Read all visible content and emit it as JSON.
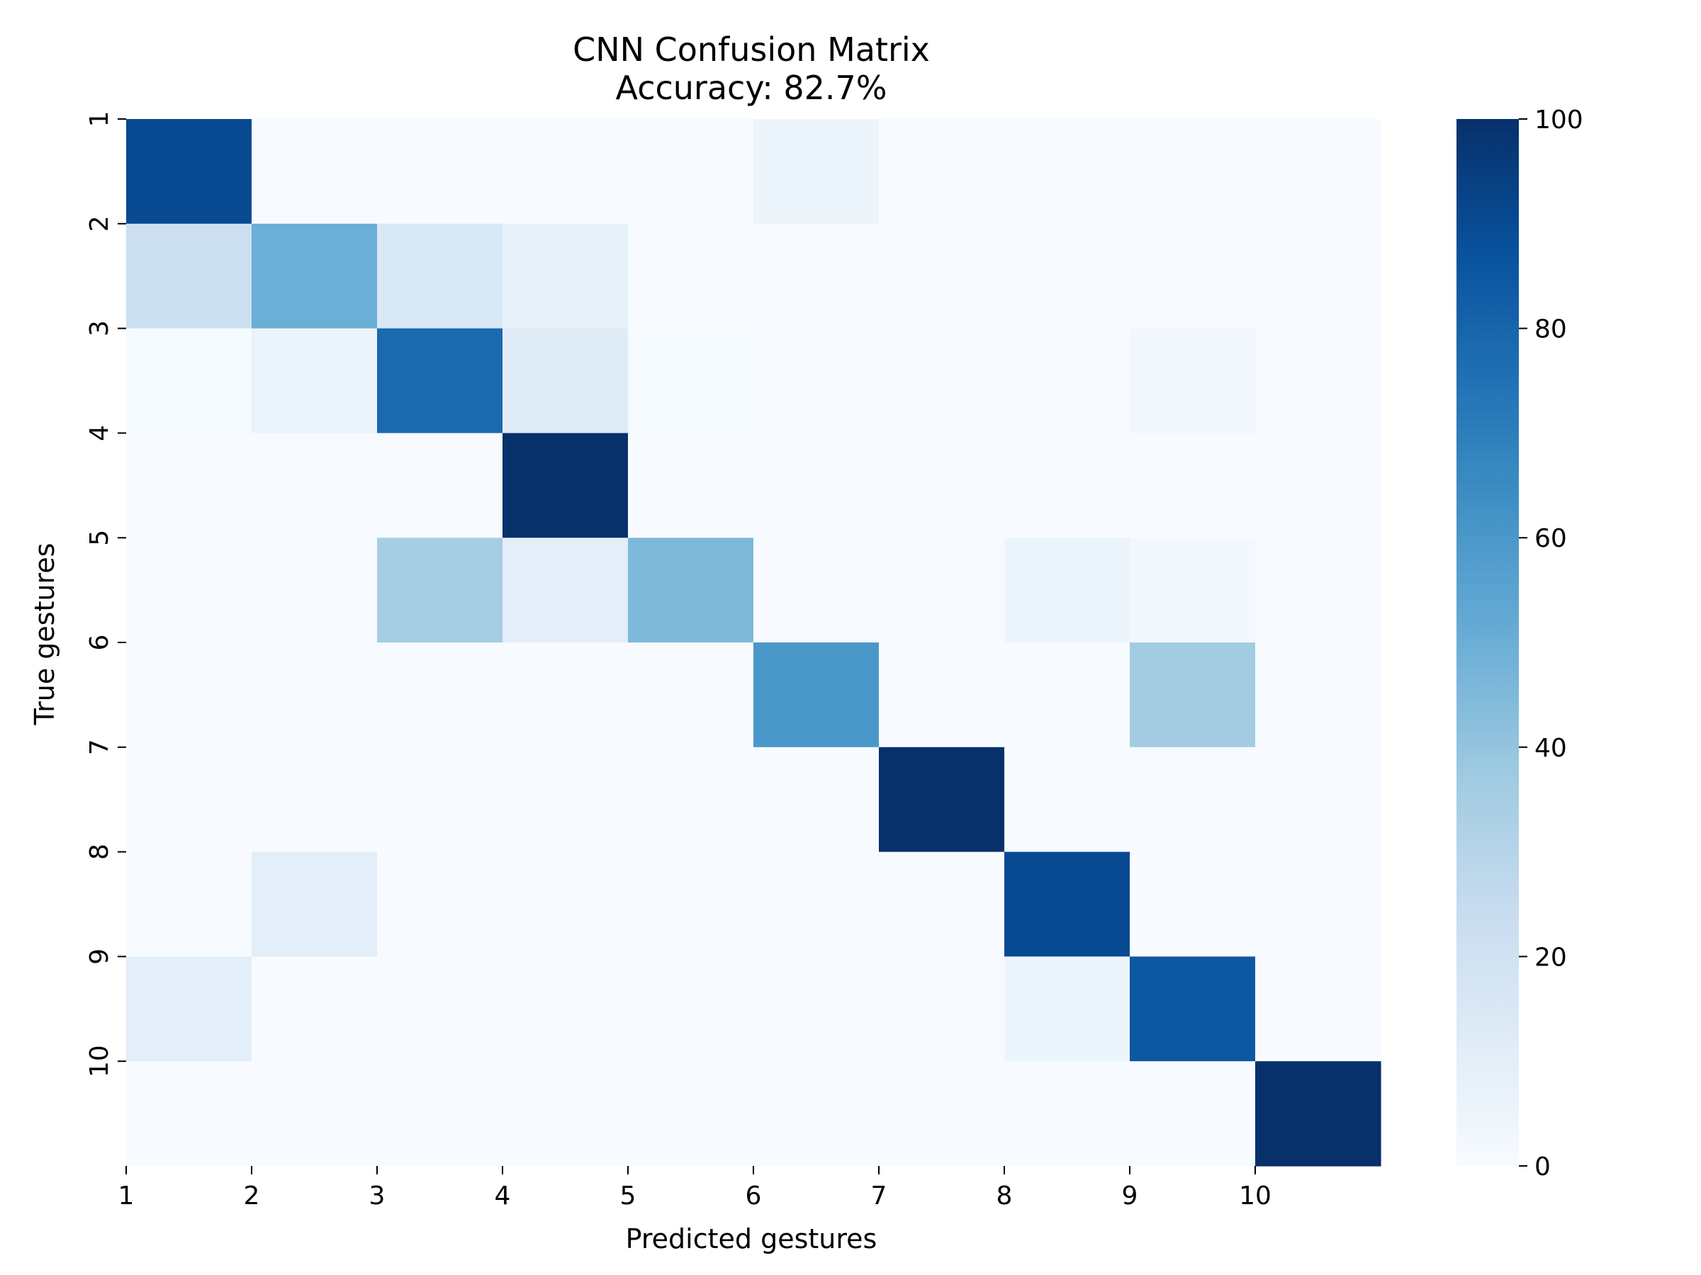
{
  "chart_data": {
    "type": "heatmap",
    "title": "CNN Confusion Matrix",
    "subtitle": "Accuracy: 82.7%",
    "xlabel": "Predicted gestures",
    "ylabel": "True gestures",
    "x_tick_labels": [
      "1",
      "2",
      "3",
      "4",
      "5",
      "6",
      "7",
      "8",
      "9",
      "10"
    ],
    "y_tick_labels": [
      "1",
      "2",
      "3",
      "4",
      "5",
      "6",
      "7",
      "8",
      "9",
      "10"
    ],
    "colormap": "Blues",
    "vmin": 0,
    "vmax": 100,
    "colorbar_ticks": [
      "0",
      "20",
      "40",
      "60",
      "80",
      "100"
    ],
    "grid": false,
    "matrix": [
      [
        90,
        0,
        0,
        0,
        0,
        5,
        0,
        0,
        0,
        0
      ],
      [
        22,
        50,
        15,
        8,
        0,
        0,
        0,
        0,
        0,
        0
      ],
      [
        1,
        6,
        78,
        12,
        1,
        0,
        0,
        0,
        3,
        0
      ],
      [
        0,
        0,
        0,
        100,
        0,
        0,
        0,
        0,
        0,
        0
      ],
      [
        0,
        0,
        35,
        10,
        45,
        0,
        0,
        5,
        2,
        0
      ],
      [
        0,
        0,
        0,
        0,
        0,
        60,
        0,
        0,
        36,
        0
      ],
      [
        0,
        0,
        0,
        0,
        0,
        0,
        100,
        0,
        0,
        0
      ],
      [
        0,
        10,
        0,
        0,
        0,
        0,
        0,
        90,
        0,
        0
      ],
      [
        10,
        0,
        0,
        0,
        0,
        0,
        0,
        5,
        85,
        0
      ],
      [
        0,
        0,
        0,
        0,
        0,
        0,
        0,
        0,
        0,
        100
      ]
    ]
  }
}
